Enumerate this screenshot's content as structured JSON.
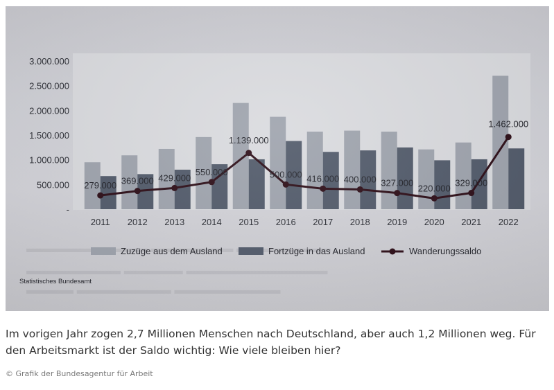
{
  "chart_data": {
    "type": "bar",
    "categories": [
      "2011",
      "2012",
      "2013",
      "2014",
      "2015",
      "2016",
      "2017",
      "2018",
      "2019",
      "2020",
      "2021",
      "2022"
    ],
    "series": [
      {
        "name": "Zuzüge aus dem Ausland",
        "kind": "bar",
        "color": "#9da2ac",
        "values": [
          950000,
          1090000,
          1220000,
          1460000,
          2150000,
          1870000,
          1570000,
          1590000,
          1570000,
          1210000,
          1350000,
          2700000
        ]
      },
      {
        "name": "Fortzüge in das Ausland",
        "kind": "bar",
        "color": "#4f5868",
        "values": [
          670000,
          710000,
          800000,
          910000,
          1010000,
          1380000,
          1160000,
          1190000,
          1250000,
          990000,
          1010000,
          1230000
        ]
      },
      {
        "name": "Wanderungssaldo",
        "kind": "line",
        "color": "#2a0a14",
        "values": [
          279000,
          369000,
          429000,
          550000,
          1139000,
          500000,
          416000,
          400000,
          327000,
          220000,
          329000,
          1462000
        ]
      }
    ],
    "data_labels": [
      "279.000",
      "369.000",
      "429.000",
      "550.000",
      "1.139.000",
      "500.000",
      "416.000",
      "400.000",
      "327.000",
      "220.000",
      "329.000",
      "1.462.000"
    ],
    "y_ticks": [
      "-",
      "500.000",
      "1.000.000",
      "1.500.000",
      "2.000.000",
      "2.500.000",
      "3.000.000"
    ],
    "y_tick_values": [
      0,
      500000,
      1000000,
      1500000,
      2000000,
      2500000,
      3000000
    ],
    "ylim": [
      0,
      3000000
    ],
    "source": "Statistisches Bundesamt",
    "legend_position": "bottom",
    "grid": false
  },
  "caption": "Im vorigen Jahr zogen 2,7 Millionen Menschen nach Deutschland, aber auch 1,2 Millionen weg. Für den Arbeitsmarkt ist der Saldo wichtig: Wie viele bleiben hier?",
  "credit": "© Grafik der Bundesagentur für Arbeit"
}
